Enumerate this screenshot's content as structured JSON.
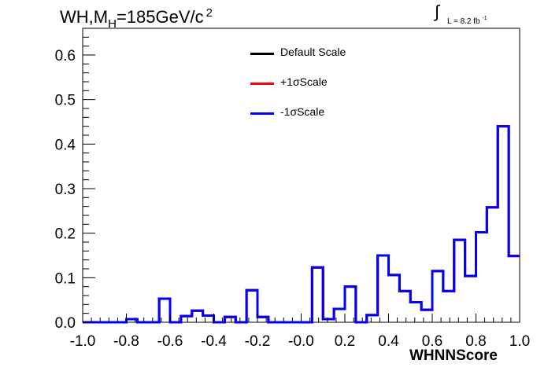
{
  "header": {
    "title_main": "WH,M",
    "title_sub": "H",
    "title_rest": "=185GeV/c",
    "title_sup": "2",
    "lumi_integral": "∫",
    "lumi_text": "L = 8.2 fb",
    "lumi_sup": "-1"
  },
  "legend": [
    {
      "label": "Default Scale",
      "color": "#000000"
    },
    {
      "label": "+1σScale",
      "color": "#ff0000"
    },
    {
      "label": "-1σScale",
      "color": "#0000ff"
    }
  ],
  "chart_data": {
    "type": "histogram",
    "title": "WH,MH=185GeV/c 2",
    "xlabel": "WHNNScore",
    "ylabel": "",
    "xlim": [
      -1.0,
      1.0
    ],
    "ylim": [
      0.0,
      0.66
    ],
    "xticks": [
      -1.0,
      -0.8,
      -0.6,
      -0.4,
      -0.2,
      0.0,
      0.2,
      0.4,
      0.6,
      0.8,
      1.0
    ],
    "xtick_labels": [
      "-1.0",
      "-0.8",
      "-0.6",
      "-0.4",
      "-0.2",
      "-0.0",
      "0.2",
      "0.4",
      "0.6",
      "0.8",
      "1.0"
    ],
    "yticks": [
      0.0,
      0.1,
      0.2,
      0.3,
      0.4,
      0.5,
      0.6
    ],
    "ytick_labels": [
      "0.0",
      "0.1",
      "0.2",
      "0.3",
      "0.4",
      "0.5",
      "0.6"
    ],
    "bin_edges": [
      -1.0,
      -0.95,
      -0.9,
      -0.85,
      -0.8,
      -0.75,
      -0.7,
      -0.65,
      -0.6,
      -0.55,
      -0.5,
      -0.45,
      -0.4,
      -0.35,
      -0.3,
      -0.25,
      -0.2,
      -0.15,
      -0.1,
      -0.05,
      0.0,
      0.05,
      0.1,
      0.15,
      0.2,
      0.25,
      0.3,
      0.35,
      0.4,
      0.45,
      0.5,
      0.55,
      0.6,
      0.65,
      0.7,
      0.75,
      0.8,
      0.85,
      0.9,
      0.95,
      1.0
    ],
    "series": [
      {
        "name": "Default Scale",
        "color": "#000000",
        "values": [
          0.0,
          0.0,
          0.0,
          0.0,
          0.007,
          0.0,
          0.0,
          0.053,
          0.0,
          0.014,
          0.026,
          0.015,
          0.0,
          0.012,
          0.0,
          0.072,
          0.012,
          0.0,
          0.0,
          0.0,
          0.0,
          0.123,
          0.007,
          0.03,
          0.08,
          0.0,
          0.016,
          0.15,
          0.106,
          0.07,
          0.045,
          0.028,
          0.115,
          0.07,
          0.185,
          0.104,
          0.202,
          0.258,
          0.44,
          0.149
        ]
      },
      {
        "name": "+1σScale",
        "color": "#ff0000",
        "values": [
          0.0,
          0.0,
          0.0,
          0.0,
          0.007,
          0.0,
          0.0,
          0.053,
          0.0,
          0.014,
          0.026,
          0.015,
          0.0,
          0.012,
          0.0,
          0.072,
          0.012,
          0.0,
          0.0,
          0.0,
          0.0,
          0.123,
          0.007,
          0.03,
          0.08,
          0.0,
          0.016,
          0.15,
          0.106,
          0.07,
          0.045,
          0.028,
          0.115,
          0.07,
          0.185,
          0.104,
          0.202,
          0.258,
          0.44,
          0.149
        ]
      },
      {
        "name": "-1σScale",
        "color": "#0000ff",
        "values": [
          0.0,
          0.0,
          0.0,
          0.0,
          0.007,
          0.0,
          0.0,
          0.053,
          0.0,
          0.014,
          0.026,
          0.015,
          0.0,
          0.012,
          0.0,
          0.072,
          0.012,
          0.0,
          0.0,
          0.0,
          0.0,
          0.123,
          0.007,
          0.03,
          0.08,
          0.0,
          0.016,
          0.15,
          0.106,
          0.07,
          0.045,
          0.028,
          0.115,
          0.07,
          0.185,
          0.104,
          0.202,
          0.258,
          0.44,
          0.149
        ]
      }
    ],
    "grid": false,
    "legend_position": "top-center"
  }
}
